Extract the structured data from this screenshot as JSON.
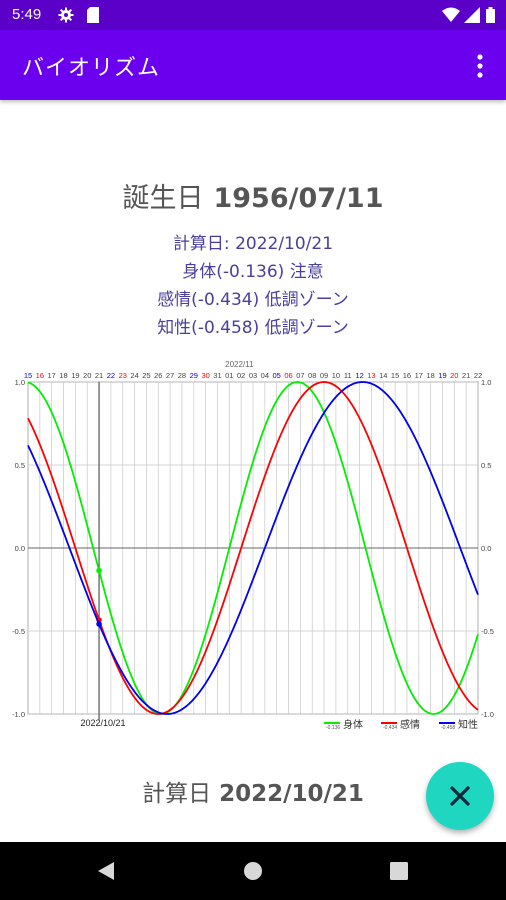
{
  "status_bar": {
    "time": "5:49"
  },
  "app_bar": {
    "title": "バイオリズム"
  },
  "birth": {
    "label": "誕生日",
    "date": "1956/07/11"
  },
  "info": {
    "calc_line": "計算日: 2022/10/21",
    "physical_line": "身体(-0.136) 注意",
    "emotional_line": "感情(-0.434) 低調ゾーン",
    "intellectual_line": "知性(-0.458) 低調ゾーン"
  },
  "calc_footer": {
    "label": "計算日",
    "date": "2022/10/21"
  },
  "colors": {
    "status_bar": "#5a00c9",
    "app_bar": "#6a00ee",
    "info_text": "#4b3f9e",
    "physical": "#00ee00",
    "emotional": "#ff0000",
    "intellectual": "#0000ee",
    "fab": "#1fd6c1"
  },
  "chart_data": {
    "type": "line",
    "month_label": "2022/11",
    "x_days": [
      "15",
      "16",
      "17",
      "18",
      "19",
      "20",
      "21",
      "22",
      "23",
      "24",
      "25",
      "26",
      "27",
      "28",
      "29",
      "30",
      "31",
      "01",
      "02",
      "03",
      "04",
      "05",
      "06",
      "07",
      "08",
      "09",
      "10",
      "11",
      "12",
      "13",
      "14",
      "15",
      "16",
      "17",
      "18",
      "19",
      "20",
      "21",
      "22"
    ],
    "x_day_colors": [
      "#0000ee",
      "#ff0000",
      "#444",
      "#444",
      "#444",
      "#444",
      "#444",
      "#0000ee",
      "#ff0000",
      "#444",
      "#444",
      "#444",
      "#444",
      "#444",
      "#0000ee",
      "#ff0000",
      "#444",
      "#444",
      "#444",
      "#444",
      "#444",
      "#0000ee",
      "#ff0000",
      "#444",
      "#444",
      "#444",
      "#444",
      "#444",
      "#0000ee",
      "#ff0000",
      "#444",
      "#444",
      "#444",
      "#444",
      "#444",
      "#0000ee",
      "#ff0000",
      "#444",
      "#444"
    ],
    "y_ticks": [
      "1.0",
      "0.5",
      "0.0",
      "-0.5",
      "-1.0"
    ],
    "ylim": [
      -1.0,
      1.0
    ],
    "marker_date": "2022/10/21",
    "marker_index": 6,
    "legend": [
      {
        "value": "-0.136",
        "name": "身体"
      },
      {
        "value": "-0.434",
        "name": "感情"
      },
      {
        "value": "-0.458",
        "name": "知性"
      }
    ],
    "series": [
      {
        "name": "身体",
        "period": 23,
        "marker_value": -0.136
      },
      {
        "name": "感情",
        "period": 28,
        "marker_value": -0.434
      },
      {
        "name": "知性",
        "period": 33,
        "marker_value": -0.458
      }
    ]
  }
}
